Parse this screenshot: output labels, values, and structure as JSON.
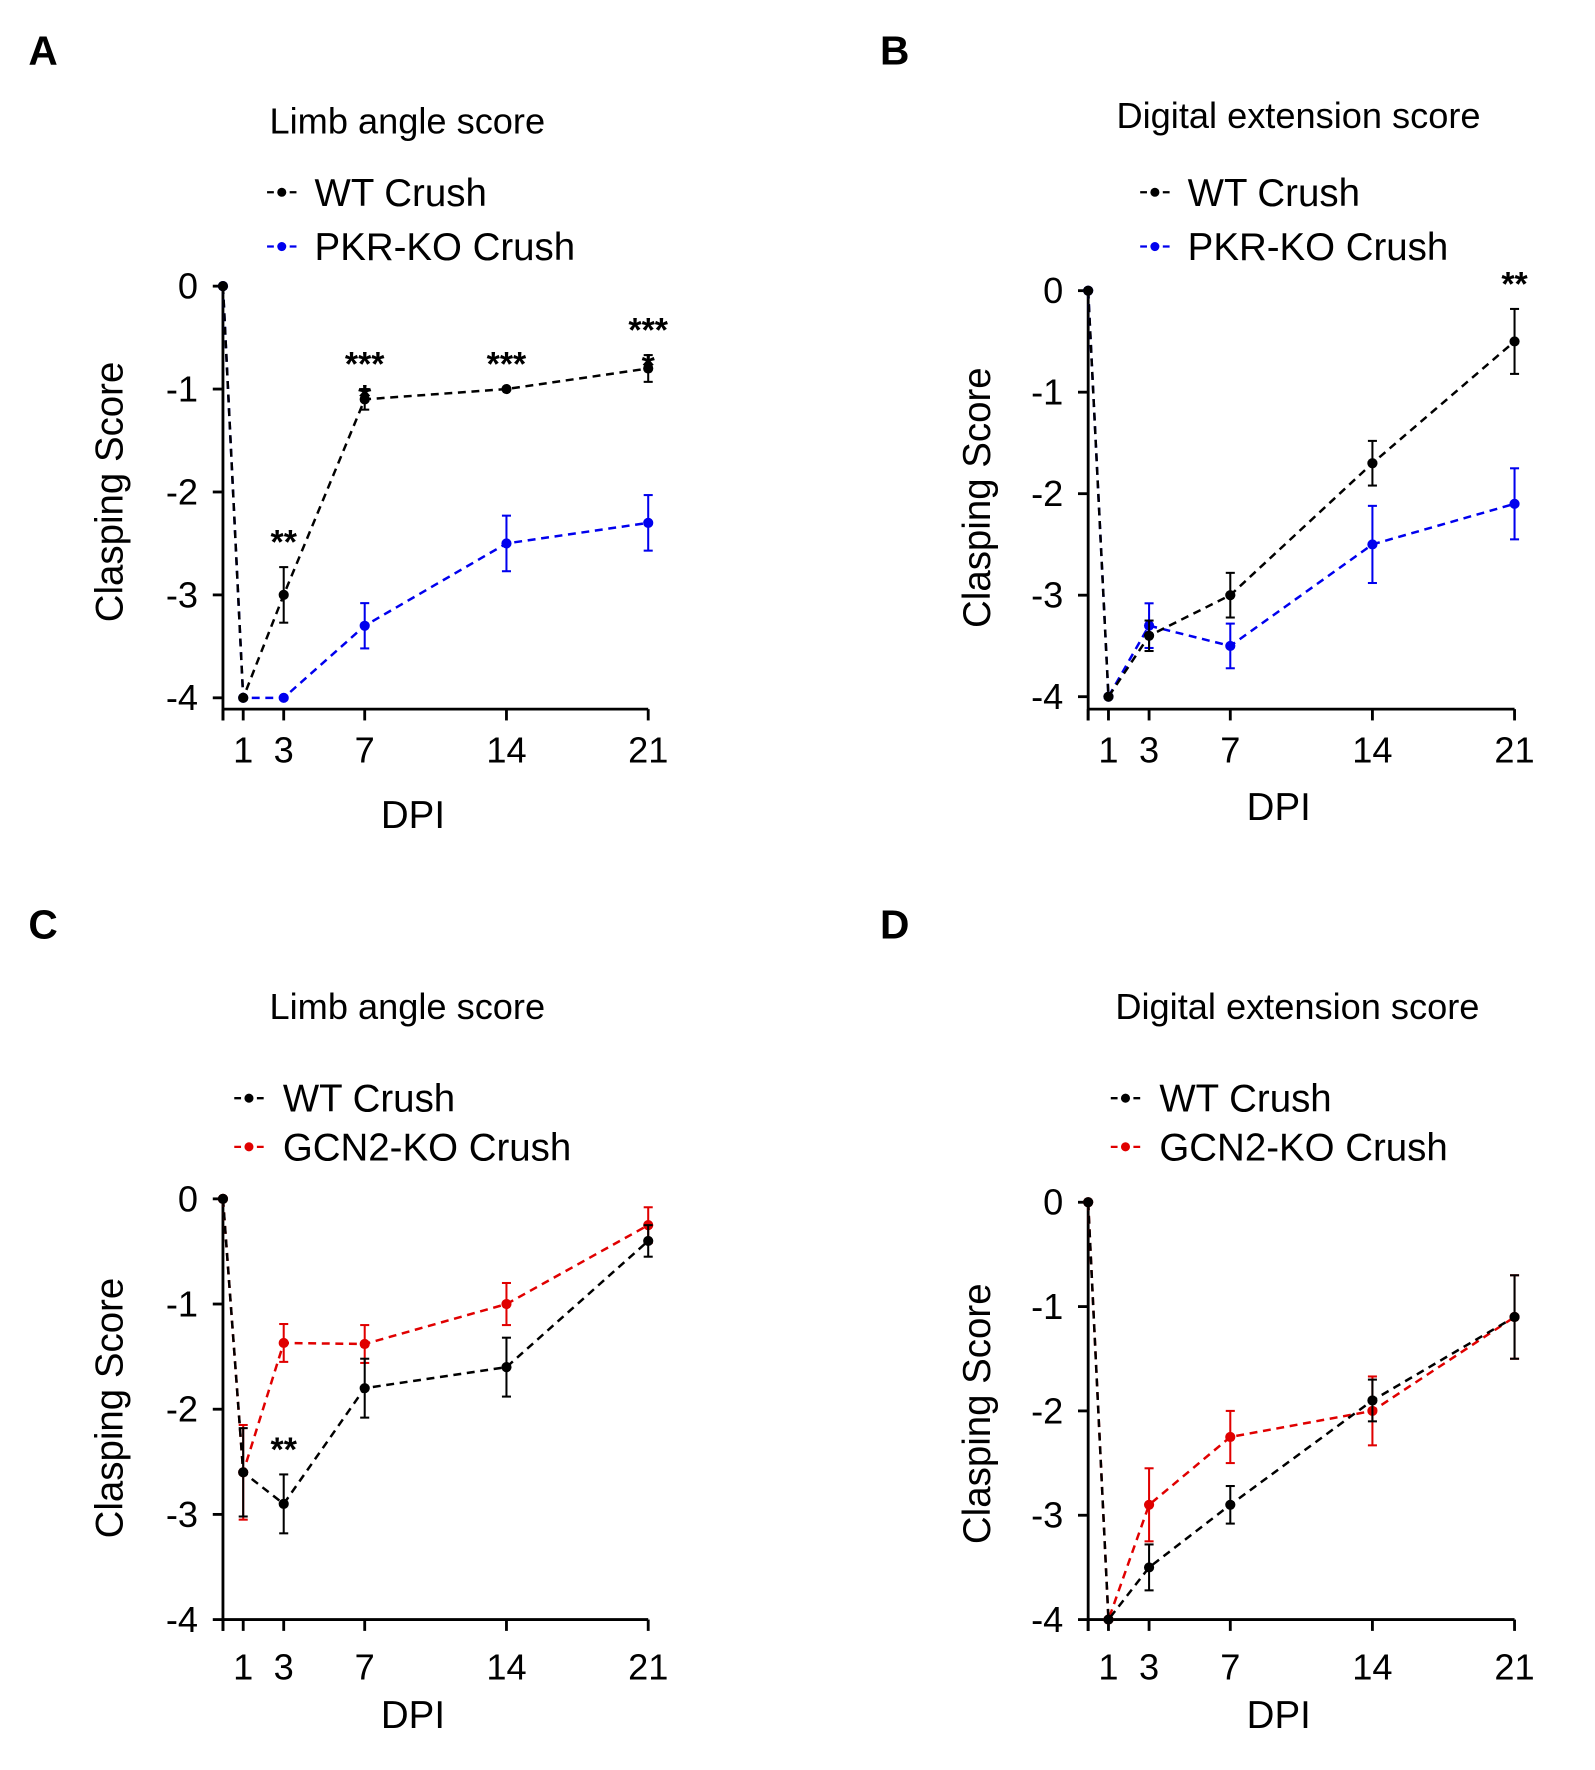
{
  "chart_data": [
    {
      "type": "line",
      "panel": "A",
      "title": "Limb angle score",
      "xlabel": "DPI",
      "ylabel": "Clasping Score",
      "x": [
        0,
        1,
        3,
        7,
        14,
        21
      ],
      "xticks": [
        "1",
        "3",
        "7",
        "14",
        "21"
      ],
      "yticks": [
        "0",
        "-1",
        "-2",
        "-3",
        "-4"
      ],
      "ylim": [
        -4,
        0
      ],
      "xlim": [
        0,
        21
      ],
      "series": [
        {
          "name": "WT Crush",
          "color": "#000000",
          "values": [
            0,
            -4,
            -3,
            -1.1,
            -1,
            -0.8
          ],
          "errors": [
            0,
            0,
            0.27,
            0.1,
            0,
            0.13
          ]
        },
        {
          "name": "PKR-KO Crush",
          "color": "#0000ee",
          "values": [
            0,
            -4,
            -4,
            -3.3,
            -2.5,
            -2.3
          ],
          "errors": [
            0,
            0,
            0,
            0.22,
            0.27,
            0.27
          ]
        }
      ],
      "annotations": [
        {
          "x": 3,
          "text": "**"
        },
        {
          "x": 7,
          "text": "***"
        },
        {
          "x": 14,
          "text": "***"
        },
        {
          "x": 21,
          "text": "***"
        },
        {
          "x": 7,
          "text": "*",
          "inner": true
        },
        {
          "x": 21,
          "text": "*",
          "inner": true
        }
      ]
    },
    {
      "type": "line",
      "panel": "B",
      "title": "Digital extension score",
      "xlabel": "DPI",
      "ylabel": "Clasping Score",
      "x": [
        0,
        1,
        3,
        7,
        14,
        21
      ],
      "xticks": [
        "1",
        "3",
        "7",
        "14",
        "21"
      ],
      "yticks": [
        "0",
        "-1",
        "-2",
        "-3",
        "-4"
      ],
      "ylim": [
        -4,
        0
      ],
      "xlim": [
        0,
        21
      ],
      "series": [
        {
          "name": "WT Crush",
          "color": "#000000",
          "values": [
            0,
            -4,
            -3.4,
            -3.0,
            -1.7,
            -0.5
          ],
          "errors": [
            0,
            0,
            0.15,
            0.22,
            0.22,
            0.32
          ]
        },
        {
          "name": "PKR-KO Crush",
          "color": "#0000ee",
          "values": [
            0,
            -4,
            -3.3,
            -3.5,
            -2.5,
            -2.1
          ],
          "errors": [
            0,
            0,
            0.22,
            0.22,
            0.38,
            0.35
          ]
        }
      ],
      "annotations": [
        {
          "x": 21,
          "text": "**"
        }
      ]
    },
    {
      "type": "line",
      "panel": "C",
      "title": "Limb angle score",
      "xlabel": "DPI",
      "ylabel": "Clasping Score",
      "x": [
        0,
        1,
        3,
        7,
        14,
        21
      ],
      "xticks": [
        "1",
        "3",
        "7",
        "14",
        "21"
      ],
      "yticks": [
        "0",
        "-1",
        "-2",
        "-3",
        "-4"
      ],
      "ylim": [
        -4,
        0
      ],
      "xlim": [
        0,
        21
      ],
      "series": [
        {
          "name": "WT Crush",
          "color": "#000000",
          "values": [
            0,
            -2.6,
            -2.9,
            -1.8,
            -1.6,
            -0.4
          ],
          "errors": [
            0,
            0.42,
            0.28,
            0.28,
            0.28,
            0.15
          ]
        },
        {
          "name": "GCN2-KO Crush",
          "color": "#e00000",
          "values": [
            0,
            -2.6,
            -1.37,
            -1.38,
            -1.0,
            -0.25
          ],
          "errors": [
            0,
            0.45,
            0.18,
            0.18,
            0.2,
            0.17
          ]
        }
      ],
      "annotations": [
        {
          "x": 3,
          "text": "**"
        }
      ]
    },
    {
      "type": "line",
      "panel": "D",
      "title": "Digital extension score",
      "xlabel": "DPI",
      "ylabel": "Clasping Score",
      "x": [
        0,
        1,
        3,
        7,
        14,
        21
      ],
      "xticks": [
        "1",
        "3",
        "7",
        "14",
        "21"
      ],
      "yticks": [
        "0",
        "-1",
        "-2",
        "-3",
        "-4"
      ],
      "ylim": [
        -4,
        0
      ],
      "xlim": [
        0,
        21
      ],
      "series": [
        {
          "name": "WT Crush",
          "color": "#000000",
          "values": [
            0,
            -4,
            -3.5,
            -2.9,
            -1.9,
            -1.1
          ],
          "errors": [
            0,
            0,
            0.22,
            0.18,
            0.2,
            0.4
          ]
        },
        {
          "name": "GCN2-KO Crush",
          "color": "#e00000",
          "values": [
            0,
            -4,
            -2.9,
            -2.25,
            -2.0,
            -1.1
          ],
          "errors": [
            0,
            0,
            0.35,
            0.25,
            0.33,
            0.4
          ]
        }
      ],
      "annotations": []
    }
  ]
}
